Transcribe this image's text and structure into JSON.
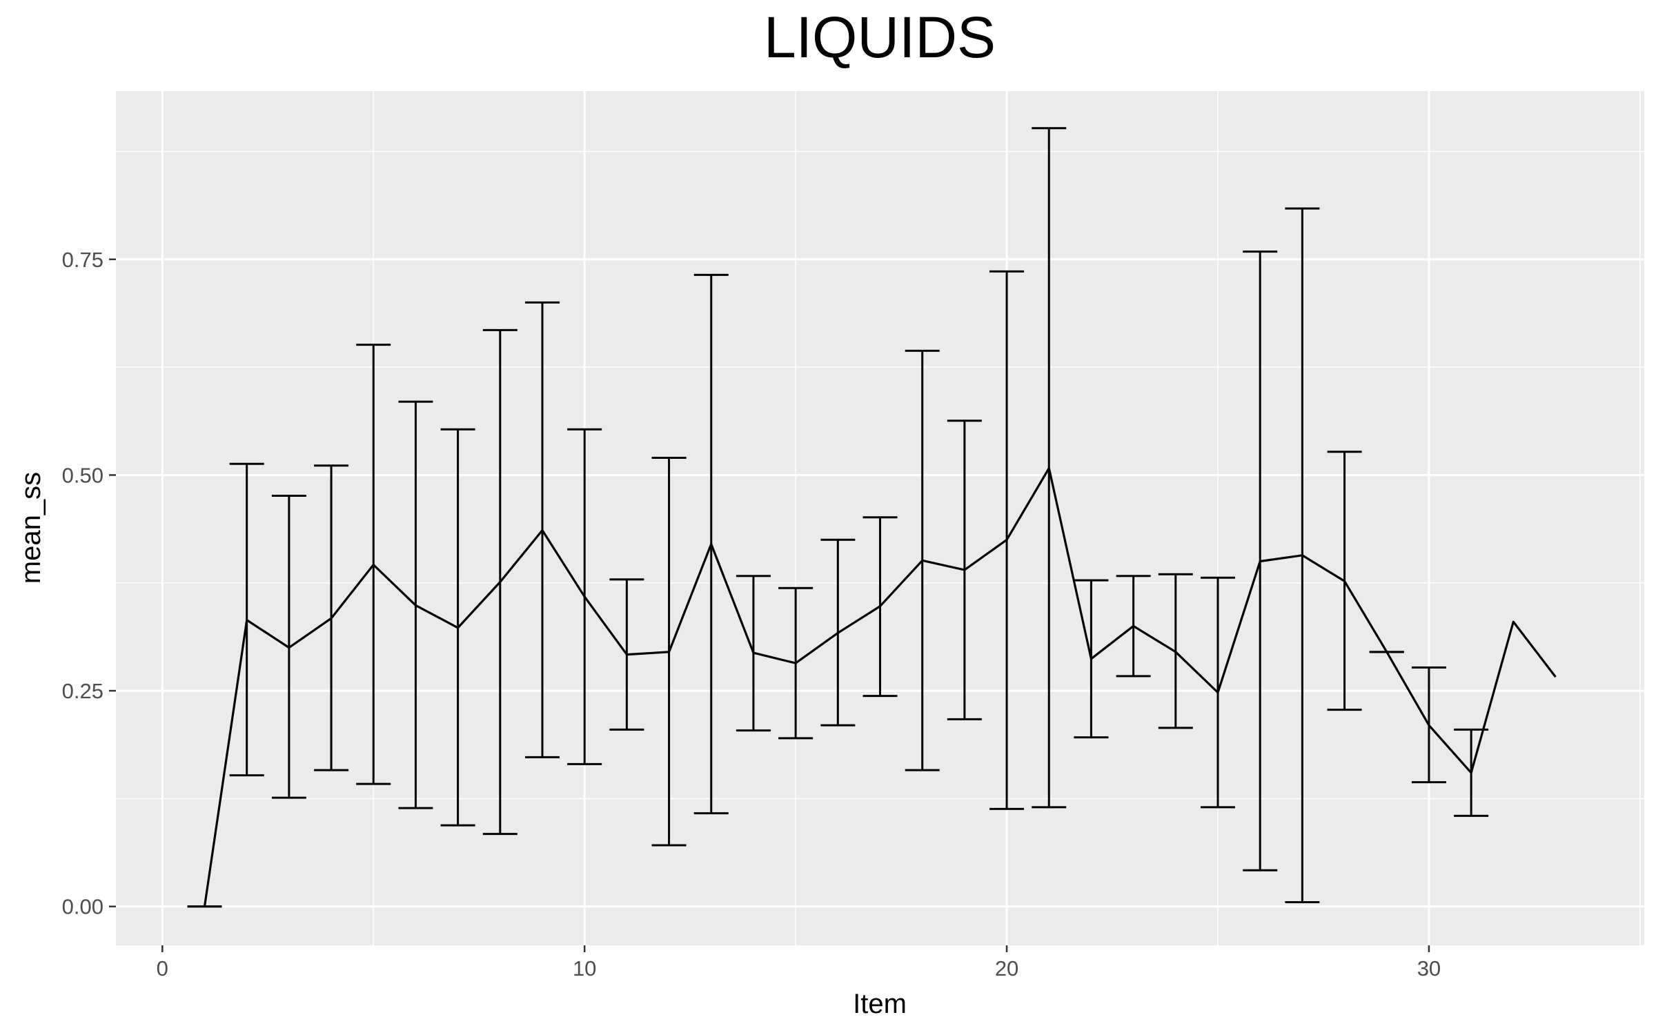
{
  "chart_data": {
    "type": "line",
    "title": "LIQUIDS",
    "xlabel": "Item",
    "ylabel": "mean_ss",
    "xlim": [
      -1.1,
      35.1
    ],
    "ylim": [
      -0.045,
      0.945
    ],
    "x_ticks": [
      0,
      10,
      20,
      30
    ],
    "x_tick_labels": [
      "0",
      "10",
      "20",
      "30"
    ],
    "y_ticks": [
      0.0,
      0.25,
      0.5,
      0.75
    ],
    "y_tick_labels": [
      "0.00",
      "0.25",
      "0.50",
      "0.75"
    ],
    "grid": true,
    "legend": "none",
    "colors": {
      "panel": "#ebebeb",
      "grid": "#ffffff",
      "line": "#000000",
      "tick_text": "#4d4d4d",
      "axis_text": "#000000"
    },
    "series": [
      {
        "x": [
          1,
          2,
          3,
          4,
          5,
          6,
          7,
          8,
          9,
          10,
          11,
          12,
          13,
          14,
          15,
          16,
          17,
          18,
          19,
          20,
          21,
          22,
          23,
          24,
          25,
          26,
          27,
          28,
          29,
          30,
          31,
          32,
          33
        ],
        "y": [
          0.0,
          0.332,
          0.3,
          0.334,
          0.396,
          0.349,
          0.323,
          0.376,
          0.436,
          0.359,
          0.292,
          0.295,
          0.42,
          0.294,
          0.282,
          0.317,
          0.348,
          0.401,
          0.39,
          0.425,
          0.508,
          0.287,
          0.325,
          0.295,
          0.248,
          0.4,
          0.407,
          0.377,
          0.295,
          0.21,
          0.155,
          0.33,
          0.266
        ],
        "lower": [
          0.0,
          0.152,
          0.126,
          0.158,
          0.142,
          0.114,
          0.094,
          0.084,
          0.173,
          0.165,
          0.205,
          0.071,
          0.108,
          0.204,
          0.195,
          0.21,
          0.244,
          0.158,
          0.217,
          0.113,
          0.115,
          0.196,
          0.267,
          0.207,
          0.115,
          0.042,
          0.005,
          0.228,
          0.295,
          0.144,
          0.105,
          null,
          null
        ],
        "upper": [
          0.0,
          0.513,
          0.476,
          0.511,
          0.651,
          0.585,
          0.553,
          0.668,
          0.7,
          0.553,
          0.379,
          0.52,
          0.732,
          0.383,
          0.369,
          0.425,
          0.451,
          0.644,
          0.563,
          0.736,
          0.902,
          0.378,
          0.383,
          0.385,
          0.381,
          0.759,
          0.809,
          0.527,
          0.295,
          0.277,
          0.205,
          null,
          null
        ]
      }
    ]
  }
}
